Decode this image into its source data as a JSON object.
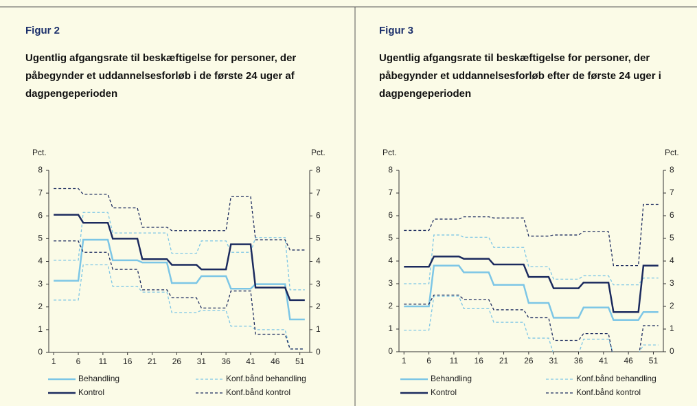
{
  "chart_data": [
    {
      "type": "line",
      "label": "Figur 2",
      "title": "Ugentlig afgangsrate til beskæftigelse for personer, der påbegynder et uddannelsesforløb i de første 24 uger af dagpengeperioden",
      "ylabel": "Pct.",
      "y2label": "Pct.",
      "x": [
        1,
        6,
        7,
        12,
        13,
        18,
        19,
        24,
        25,
        30,
        31,
        36,
        37,
        41,
        42,
        48,
        49,
        52
      ],
      "xlim": [
        0,
        53
      ],
      "xticks": [
        1,
        6,
        11,
        16,
        21,
        26,
        31,
        36,
        41,
        46,
        51
      ],
      "ylim": [
        0,
        8
      ],
      "yticks": [
        0,
        1,
        2,
        3,
        4,
        5,
        6,
        7,
        8
      ],
      "y2lim": [
        0,
        8
      ],
      "y2ticks": [
        0,
        1,
        2,
        3,
        4,
        5,
        6,
        7,
        8
      ],
      "series": [
        {
          "name": "Behandling",
          "color": "#7cc6e6",
          "dashed": false,
          "values": [
            3.15,
            3.15,
            4.95,
            4.95,
            4.05,
            4.05,
            3.95,
            3.95,
            3.05,
            3.05,
            3.35,
            3.35,
            2.8,
            2.8,
            3.0,
            3.0,
            1.45,
            1.45
          ]
        },
        {
          "name": "Konf.bånd behandling",
          "color": "#7cc6e6",
          "dashed": true,
          "upper": [
            4.05,
            4.05,
            6.15,
            6.15,
            5.25,
            5.25,
            5.25,
            5.25,
            4.35,
            4.35,
            4.9,
            4.9,
            4.4,
            4.4,
            5.05,
            5.05,
            2.75,
            2.75
          ],
          "lower": [
            2.3,
            2.3,
            3.85,
            3.85,
            2.9,
            2.9,
            2.65,
            2.65,
            1.75,
            1.75,
            1.85,
            1.85,
            1.15,
            1.15,
            1.0,
            1.0,
            0.15,
            0.15
          ]
        },
        {
          "name": "Kontrol",
          "color": "#1b2a5e",
          "dashed": false,
          "values": [
            6.05,
            6.05,
            5.7,
            5.7,
            5.0,
            5.0,
            4.1,
            4.1,
            3.85,
            3.85,
            3.65,
            3.65,
            4.75,
            4.75,
            2.85,
            2.85,
            2.3,
            2.3
          ]
        },
        {
          "name": "Konf.bånd kontrol",
          "color": "#1b2a5e",
          "dashed": true,
          "upper": [
            7.2,
            7.2,
            6.95,
            6.95,
            6.35,
            6.35,
            5.5,
            5.5,
            5.35,
            5.35,
            5.35,
            5.35,
            6.85,
            6.85,
            4.95,
            4.95,
            4.5,
            4.5
          ],
          "lower": [
            4.9,
            4.9,
            4.4,
            4.4,
            3.65,
            3.65,
            2.75,
            2.75,
            2.4,
            2.4,
            1.95,
            1.95,
            2.7,
            2.7,
            0.8,
            0.8,
            0.15,
            0.15
          ]
        }
      ]
    },
    {
      "type": "line",
      "label": "Figur 3",
      "title": "Ugentlig afgangsrate til beskæftigelse for personer, der påbegynder et uddannelsesforløb efter de første 24 uger i dagpengeperioden",
      "ylabel": "Pct.",
      "y2label": "Pct.",
      "x": [
        1,
        6,
        7,
        12,
        13,
        18,
        19,
        25,
        26,
        30,
        31,
        36,
        37,
        42,
        43,
        48,
        49,
        52
      ],
      "xlim": [
        0,
        53
      ],
      "xticks": [
        1,
        6,
        11,
        16,
        21,
        26,
        31,
        36,
        41,
        46,
        51
      ],
      "ylim": [
        0,
        8
      ],
      "yticks": [
        0,
        1,
        2,
        3,
        4,
        5,
        6,
        7,
        8
      ],
      "y2lim": [
        0,
        8
      ],
      "y2ticks": [
        0,
        1,
        2,
        3,
        4,
        5,
        6,
        7,
        8
      ],
      "series": [
        {
          "name": "Behandling",
          "color": "#7cc6e6",
          "dashed": false,
          "values": [
            2.0,
            2.0,
            3.8,
            3.8,
            3.5,
            3.5,
            2.95,
            2.95,
            2.15,
            2.15,
            1.5,
            1.5,
            1.95,
            1.95,
            1.4,
            1.4,
            1.75,
            1.75
          ]
        },
        {
          "name": "Konf.bånd behandling",
          "color": "#7cc6e6",
          "dashed": true,
          "upper": [
            3.0,
            3.0,
            5.15,
            5.15,
            5.05,
            5.05,
            4.6,
            4.6,
            3.75,
            3.75,
            3.2,
            3.2,
            3.35,
            3.35,
            2.95,
            2.95,
            3.25,
            3.25
          ],
          "lower": [
            0.95,
            0.95,
            2.45,
            2.45,
            1.9,
            1.9,
            1.3,
            1.3,
            0.6,
            0.6,
            -0.1,
            -0.1,
            0.55,
            0.55,
            -0.1,
            -0.1,
            0.3,
            0.3
          ]
        },
        {
          "name": "Kontrol",
          "color": "#1b2a5e",
          "dashed": false,
          "values": [
            3.75,
            3.75,
            4.2,
            4.2,
            4.1,
            4.1,
            3.85,
            3.85,
            3.3,
            3.3,
            2.8,
            2.8,
            3.05,
            3.05,
            1.75,
            1.75,
            3.8,
            3.8
          ]
        },
        {
          "name": "Konf.bånd kontrol",
          "color": "#1b2a5e",
          "dashed": true,
          "upper": [
            5.35,
            5.35,
            5.85,
            5.85,
            5.95,
            5.95,
            5.9,
            5.9,
            5.1,
            5.1,
            5.15,
            5.15,
            5.3,
            5.3,
            3.8,
            3.8,
            6.5,
            6.5
          ],
          "lower": [
            2.1,
            2.1,
            2.5,
            2.5,
            2.3,
            2.3,
            1.85,
            1.85,
            1.5,
            1.5,
            0.5,
            0.5,
            0.8,
            0.8,
            -0.3,
            -0.3,
            1.15,
            1.15
          ]
        }
      ]
    }
  ]
}
